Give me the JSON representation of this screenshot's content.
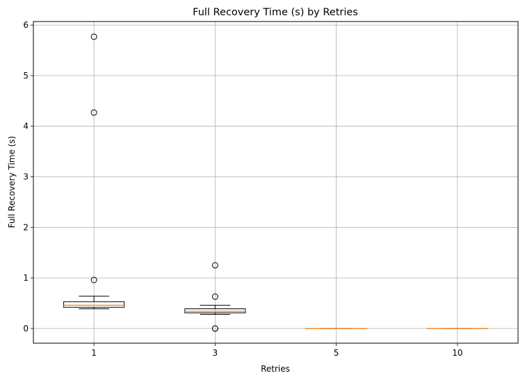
{
  "chart_data": {
    "type": "box",
    "title": "Full Recovery Time (s) by Retries",
    "xlabel": "Retries",
    "ylabel": "Full Recovery Time (s)",
    "ylim": [
      -0.29,
      6.07
    ],
    "yticks": [
      0,
      1,
      2,
      3,
      4,
      5,
      6
    ],
    "grid": true,
    "categories": [
      "1",
      "3",
      "5",
      "10"
    ],
    "boxes": [
      {
        "category": "1",
        "whislo": 0.39,
        "q1": 0.42,
        "med": 0.46,
        "q3": 0.53,
        "whishi": 0.64,
        "fliers": [
          0.96,
          4.27,
          5.77
        ]
      },
      {
        "category": "3",
        "whislo": 0.28,
        "q1": 0.31,
        "med": 0.34,
        "q3": 0.39,
        "whishi": 0.46,
        "fliers": [
          0.63,
          1.25,
          0.0,
          0.0
        ]
      },
      {
        "category": "5",
        "whislo": 0.0,
        "q1": 0.0,
        "med": 0.0,
        "q3": 0.0,
        "whishi": 0.0,
        "fliers": []
      },
      {
        "category": "10",
        "whislo": 0.0,
        "q1": 0.0,
        "med": 0.0,
        "q3": 0.0,
        "whishi": 0.0,
        "fliers": []
      }
    ],
    "colors": {
      "box": "#000000",
      "median": "#ff7f0e",
      "grid": "#b0b0b0"
    }
  }
}
